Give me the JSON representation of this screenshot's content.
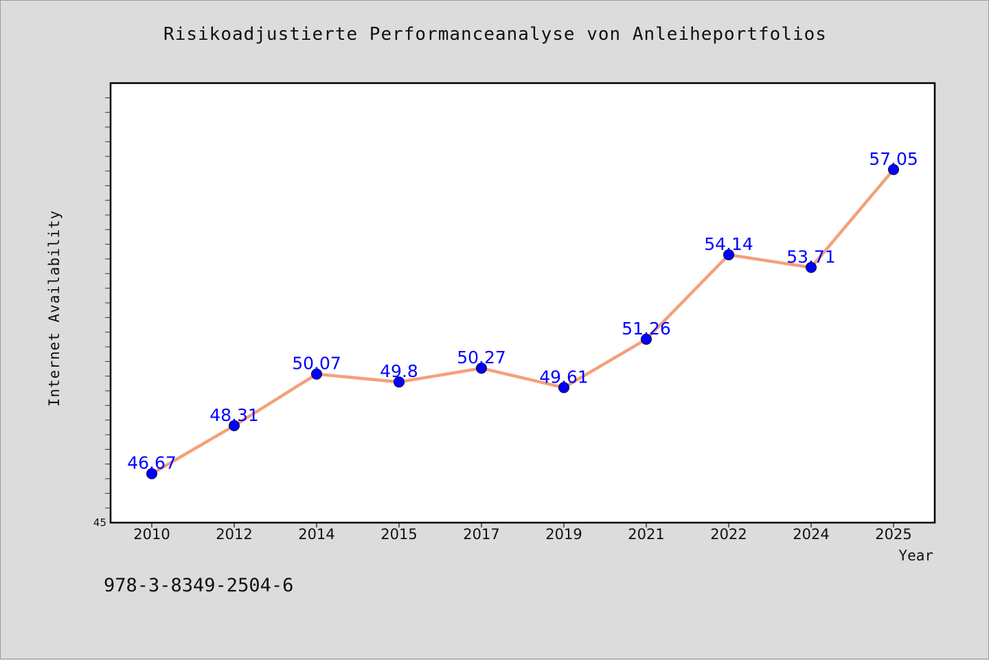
{
  "title": "Risikoadjustierte Performanceanalyse von Anleiheportfolios",
  "footnote": "978-3-8349-2504-6",
  "chart_data": {
    "type": "line",
    "title": "Risikoadjustierte Performanceanalyse von Anleiheportfolios",
    "xlabel": "Year",
    "ylabel": "Internet Availability",
    "categories": [
      "2010",
      "2012",
      "2014",
      "2015",
      "2017",
      "2019",
      "2021",
      "2022",
      "2024",
      "2025"
    ],
    "values": [
      46.67,
      48.31,
      50.07,
      49.8,
      50.27,
      49.61,
      51.26,
      54.14,
      53.71,
      57.05
    ],
    "data_labels": [
      "46.67",
      "48.31",
      "50.07",
      "49.8",
      "50.27",
      "49.61",
      "51.26",
      "54.14",
      "53.71",
      "57.05"
    ],
    "ylim": [
      45,
      60
    ],
    "y_tick_label": "45",
    "grid": false,
    "legend": "none",
    "line_color": "#f4a07a",
    "marker_color": "#0000ff",
    "label_color": "#0000ff"
  }
}
